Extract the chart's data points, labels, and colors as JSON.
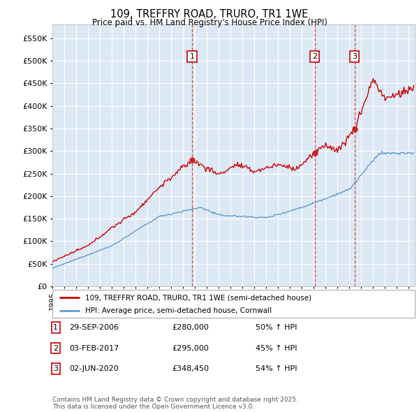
{
  "title": "109, TREFFRY ROAD, TRURO, TR1 1WE",
  "subtitle": "Price paid vs. HM Land Registry's House Price Index (HPI)",
  "red_label": "109, TREFFRY ROAD, TRURO, TR1 1WE (semi-detached house)",
  "blue_label": "HPI: Average price, semi-detached house, Cornwall",
  "footnote": "Contains HM Land Registry data © Crown copyright and database right 2025.\nThis data is licensed under the Open Government Licence v3.0.",
  "transactions": [
    {
      "num": 1,
      "date": "29-SEP-2006",
      "price": 280000,
      "hpi_pct": "50% ↑ HPI",
      "year": 2006.75
    },
    {
      "num": 2,
      "date": "03-FEB-2017",
      "price": 295000,
      "hpi_pct": "45% ↑ HPI",
      "year": 2017.08
    },
    {
      "num": 3,
      "date": "02-JUN-2020",
      "price": 348450,
      "hpi_pct": "54% ↑ HPI",
      "year": 2020.42
    }
  ],
  "ylim": [
    0,
    580000
  ],
  "yticks": [
    0,
    50000,
    100000,
    150000,
    200000,
    250000,
    300000,
    350000,
    400000,
    450000,
    500000,
    550000
  ],
  "xlim_start": 1995.0,
  "xlim_end": 2025.5,
  "plot_bg": "#dce9f5",
  "grid_color": "#ffffff",
  "red_color": "#cc0000",
  "blue_color": "#6699cc",
  "marker_color": "#cc2222"
}
